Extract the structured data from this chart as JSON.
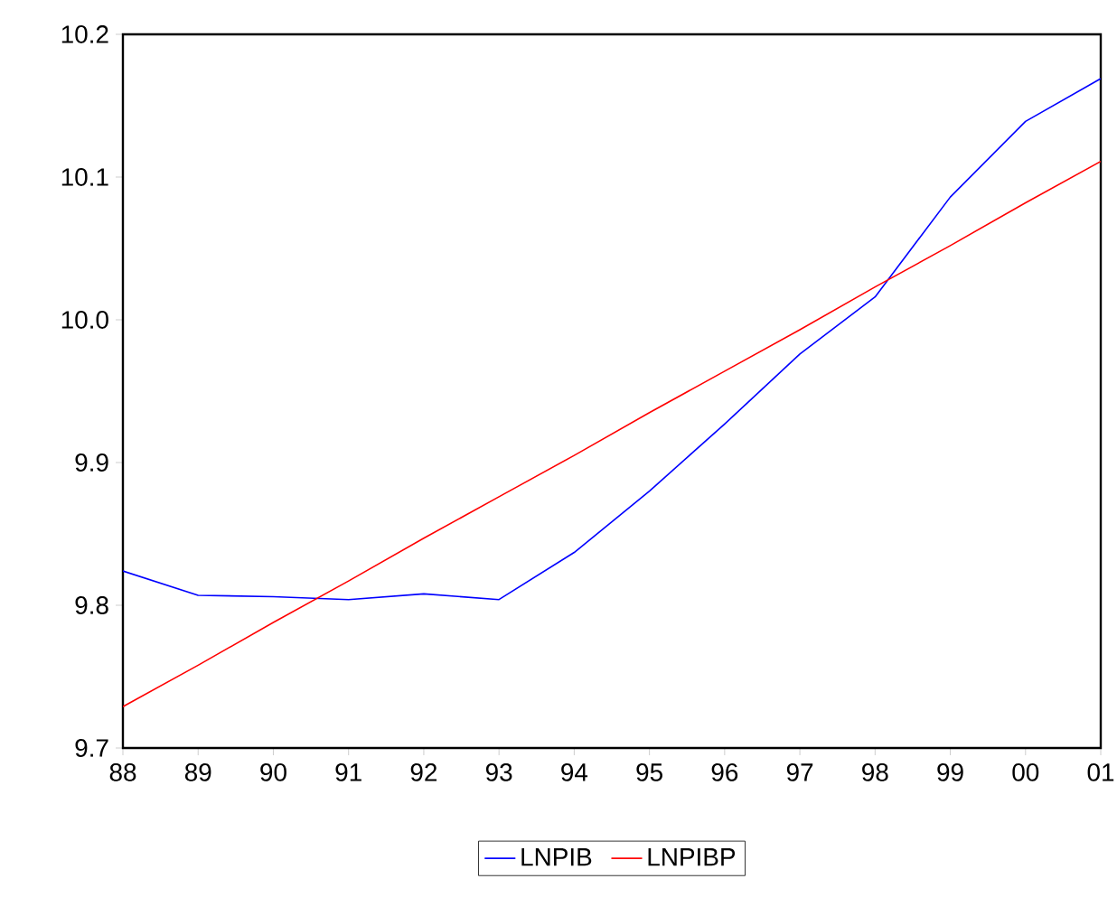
{
  "chart_data": {
    "type": "line",
    "categories": [
      "88",
      "89",
      "90",
      "91",
      "92",
      "93",
      "94",
      "95",
      "96",
      "97",
      "98",
      "99",
      "00",
      "01"
    ],
    "series": [
      {
        "name": "LNPIB",
        "color": "#0000ff",
        "values": [
          9.824,
          9.807,
          9.806,
          9.804,
          9.808,
          9.804,
          9.837,
          9.88,
          9.927,
          9.976,
          10.016,
          10.086,
          10.139,
          10.169
        ]
      },
      {
        "name": "LNPIBP",
        "color": "#ff0000",
        "values": [
          9.729,
          9.758,
          9.788,
          9.817,
          9.847,
          9.876,
          9.905,
          9.935,
          9.964,
          9.993,
          10.023,
          10.052,
          10.082,
          10.111
        ]
      }
    ],
    "ylim": [
      9.7,
      10.2
    ],
    "yticks": [
      9.7,
      9.8,
      9.9,
      {
        "value": 10.0,
        "label": "10.0"
      },
      10.1,
      10.2
    ],
    "grid": false,
    "legend": "bottom",
    "marker": "none",
    "line_style": "solid"
  }
}
